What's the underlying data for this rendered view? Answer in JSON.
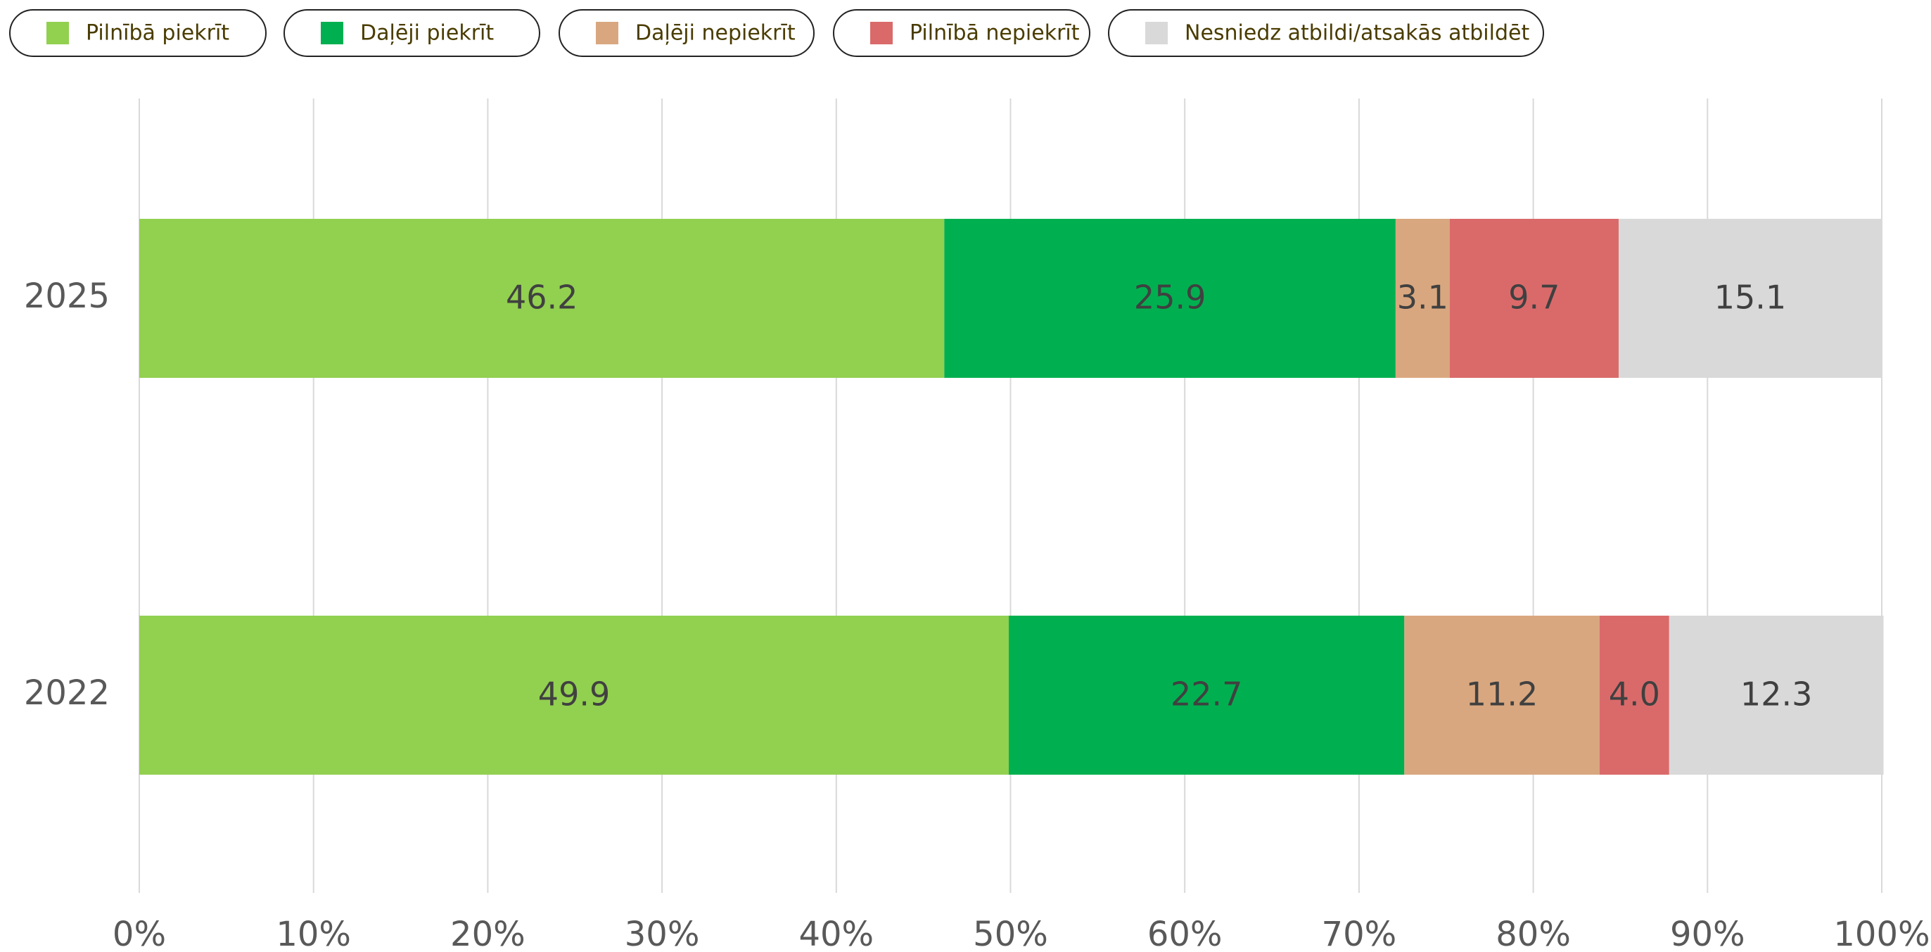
{
  "chart_data": {
    "type": "stacked_barh",
    "categories": [
      "2025",
      "2022"
    ],
    "series": [
      {
        "name": "Pilnībā piekrīt",
        "color": "#92d050",
        "values": [
          46.2,
          49.9
        ]
      },
      {
        "name": "Daļēji piekrīt",
        "color": "#00b050",
        "values": [
          25.9,
          22.7
        ]
      },
      {
        "name": "Daļēji nepiekrīt",
        "color": "#d9a77f",
        "values": [
          3.1,
          11.2
        ]
      },
      {
        "name": "Pilnībā nepiekrīt",
        "color": "#da6a6a",
        "values": [
          9.7,
          4.0
        ],
        "value_labels": [
          "9.7",
          "4.0"
        ]
      },
      {
        "name": "Nesniedz atbildi/atsakās atbildēt",
        "color": "#d9d9d9",
        "values": [
          15.1,
          12.3
        ]
      }
    ],
    "xlim": [
      0,
      100
    ],
    "xticks": [
      {
        "value": 0,
        "label": "0%"
      },
      {
        "value": 10,
        "label": "10%"
      },
      {
        "value": 20,
        "label": "20%"
      },
      {
        "value": 30,
        "label": "30%"
      },
      {
        "value": 40,
        "label": "40%"
      },
      {
        "value": 50,
        "label": "50%"
      },
      {
        "value": 60,
        "label": "60%"
      },
      {
        "value": 70,
        "label": "70%"
      },
      {
        "value": 80,
        "label": "80%"
      },
      {
        "value": 90,
        "label": "90%"
      },
      {
        "value": 100,
        "label": "100%"
      }
    ],
    "grid": true,
    "legend": "top"
  }
}
